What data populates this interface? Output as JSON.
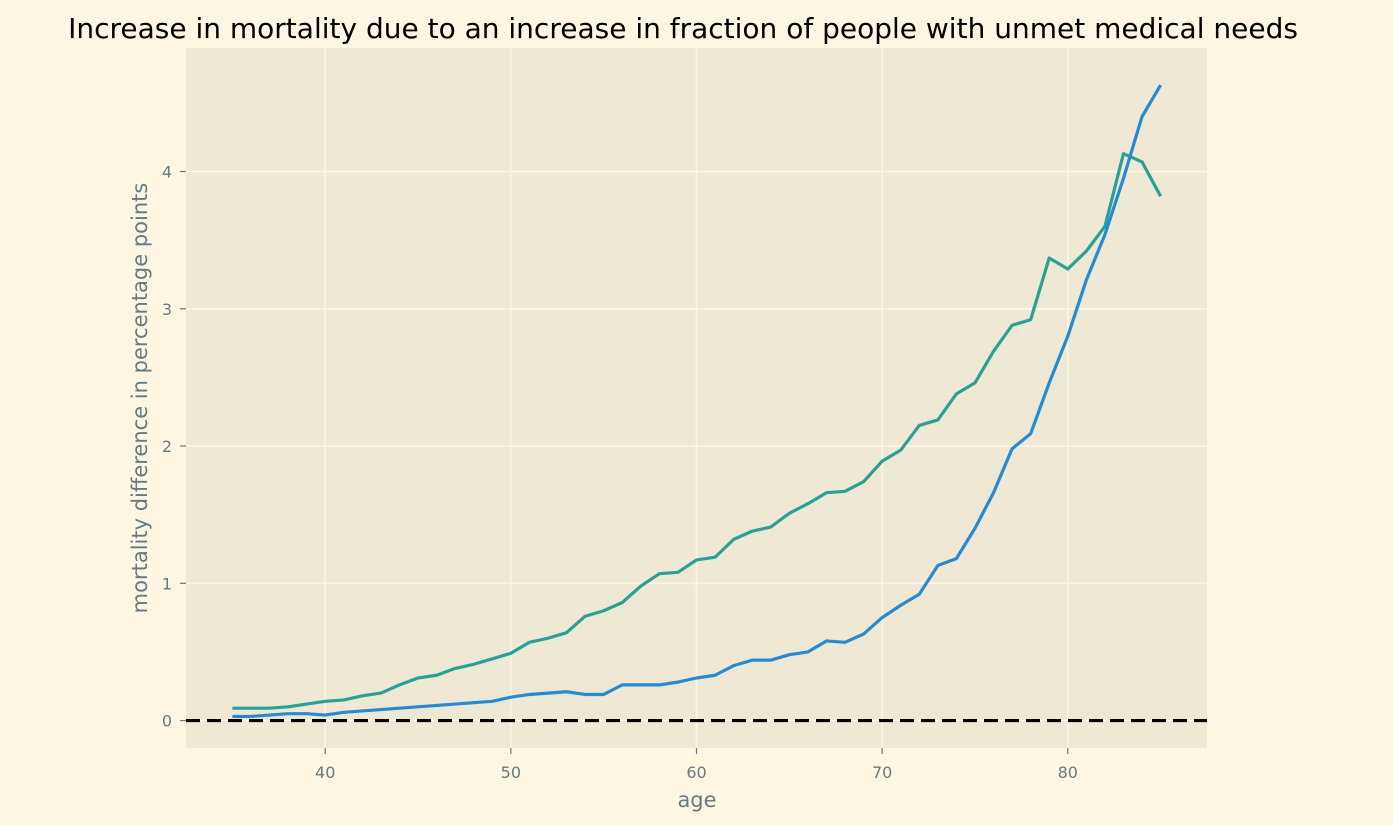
{
  "colors": {
    "figure_background": "#fdf6e3",
    "axes_background": "#eee8d5",
    "grid": "#fdf6e3",
    "text": "#657b83",
    "reference_line": "#000000"
  },
  "chart_data": {
    "type": "line",
    "title": "Increase in mortality due to an increase in fraction of people with unmet medical needs",
    "xlabel": "age",
    "ylabel": "mortality difference in percentage points",
    "xlim": [
      32.5,
      87.5
    ],
    "ylim": [
      -0.2,
      4.9
    ],
    "xticks": [
      40,
      50,
      60,
      70,
      80
    ],
    "yticks": [
      0,
      1,
      2,
      3,
      4
    ],
    "grid": true,
    "legend": "none",
    "reference_line": {
      "y": 0,
      "style": "dashed",
      "color": "#000000"
    },
    "x": [
      35,
      36,
      37,
      38,
      39,
      40,
      41,
      42,
      43,
      44,
      45,
      46,
      47,
      48,
      49,
      50,
      51,
      52,
      53,
      54,
      55,
      56,
      57,
      58,
      59,
      60,
      61,
      62,
      63,
      64,
      65,
      66,
      67,
      68,
      69,
      70,
      71,
      72,
      73,
      74,
      75,
      76,
      77,
      78,
      79,
      80,
      81,
      82,
      83,
      84,
      85
    ],
    "series": [
      {
        "color": "#2aa198",
        "values": [
          0.09,
          0.09,
          0.09,
          0.1,
          0.12,
          0.14,
          0.15,
          0.18,
          0.2,
          0.26,
          0.31,
          0.33,
          0.38,
          0.41,
          0.45,
          0.49,
          0.57,
          0.6,
          0.64,
          0.76,
          0.8,
          0.86,
          0.98,
          1.07,
          1.08,
          1.17,
          1.19,
          1.32,
          1.38,
          1.41,
          1.51,
          1.58,
          1.66,
          1.67,
          1.74,
          1.89,
          1.97,
          2.15,
          2.19,
          2.38,
          2.46,
          2.69,
          2.88,
          2.92,
          3.37,
          3.29,
          3.42,
          3.6,
          4.13,
          4.07,
          3.82
        ]
      },
      {
        "color": "#268bd2",
        "values": [
          0.03,
          0.03,
          0.04,
          0.05,
          0.05,
          0.04,
          0.06,
          0.07,
          0.08,
          0.09,
          0.1,
          0.11,
          0.12,
          0.13,
          0.14,
          0.17,
          0.19,
          0.2,
          0.21,
          0.19,
          0.19,
          0.26,
          0.26,
          0.26,
          0.28,
          0.31,
          0.33,
          0.4,
          0.44,
          0.44,
          0.48,
          0.5,
          0.58,
          0.57,
          0.63,
          0.75,
          0.84,
          0.92,
          1.13,
          1.18,
          1.4,
          1.66,
          1.98,
          2.09,
          2.46,
          2.8,
          3.21,
          3.54,
          3.95,
          4.4,
          4.63
        ]
      }
    ]
  }
}
